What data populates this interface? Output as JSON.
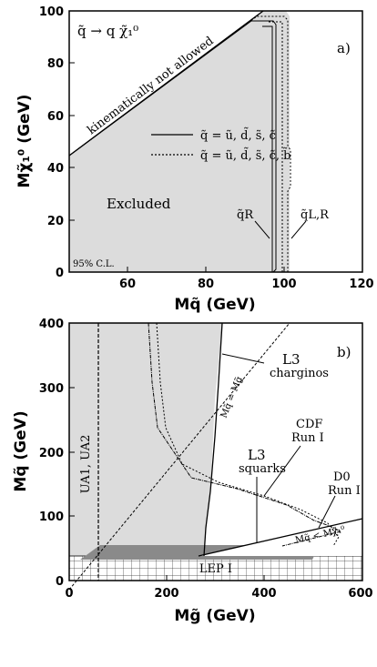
{
  "chart_data": [
    {
      "panel_label": "a)",
      "type": "area",
      "title": "q̃ → q χ̃₁⁰",
      "xlabel": "Mq̃ (GeV)",
      "ylabel": "Mχ̃₁⁰ (GeV)",
      "xlim": [
        45,
        120
      ],
      "ylim": [
        0,
        100
      ],
      "xticks": [
        "60",
        "80",
        "100",
        "120"
      ],
      "yticks": [
        "0",
        "20",
        "40",
        "60",
        "80",
        "100"
      ],
      "grid": false,
      "legend_position": "center-right",
      "series": [
        {
          "name": "q̃ = ũ, d̃, s̃, c̃",
          "style": "solid",
          "x": [
            45,
            91.5,
            96,
            96,
            97
          ],
          "y": [
            45,
            88,
            85,
            0,
            0
          ]
        },
        {
          "name": "q̃ = ũ, d̃, s̃, c̃, b̃",
          "style": "dotted",
          "x": [
            45,
            91,
            99.5,
            99.5,
            100.5
          ],
          "y": [
            45,
            91,
            91,
            0,
            0
          ]
        }
      ],
      "kinematic_line": {
        "x": [
          45,
          100
        ],
        "y": [
          45,
          100
        ]
      },
      "annotations": {
        "kinematic": "kinematically not allowed",
        "excluded": "Excluded",
        "cl": "95% C.L.",
        "qR": "q̃R",
        "qLR": "q̃L,R"
      }
    },
    {
      "panel_label": "b)",
      "type": "area",
      "xlabel": "Mg̃ (GeV)",
      "ylabel": "Mq̃ (GeV)",
      "xlim": [
        0,
        600
      ],
      "ylim": [
        0,
        400
      ],
      "xticks": [
        "0",
        "200",
        "400",
        "600"
      ],
      "yticks": [
        "0",
        "100",
        "200",
        "300",
        "400"
      ],
      "grid": false,
      "regions": {
        "ua": "UA1, UA2",
        "lep": "LEP I",
        "l3_charginos": "L3\ncharginos",
        "l3_squarks": "L3\nsquarks",
        "cdf": "CDF\nRun I",
        "d0": "D0\nRun I",
        "diag_upper": "Mq̃ = Mg̃",
        "diag_lower": "Mq̃ < Mχ̃₁⁰"
      },
      "curves": {
        "l3_chargino_boundary": {
          "x": [
            275,
            305,
            300,
            295,
            285,
            275,
            270,
            265
          ],
          "y": [
            400,
            300,
            250,
            200,
            150,
            100,
            70,
            45
          ]
        },
        "cdf": {
          "x": [
            185,
            200,
            240,
            290,
            340,
            420,
            510,
            530
          ],
          "y": [
            400,
            260,
            220,
            190,
            175,
            160,
            130,
            100
          ]
        },
        "d0": {
          "x": [
            200,
            240,
            300,
            400,
            480,
            510,
            540
          ],
          "y": [
            400,
            260,
            200,
            170,
            140,
            130,
            120
          ]
        },
        "l3_squarks": {
          "x": [
            100,
            520,
            545,
            540,
            110
          ],
          "y": [
            100,
            100,
            90,
            75,
            75
          ]
        }
      }
    }
  ]
}
